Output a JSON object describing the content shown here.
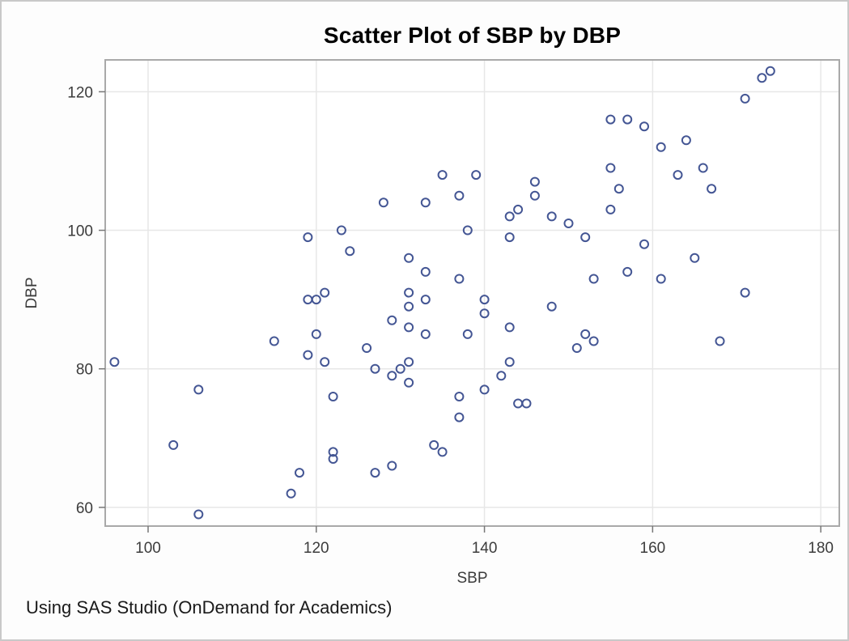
{
  "chart_data": {
    "type": "scatter",
    "title": "Scatter Plot of SBP by DBP",
    "xlabel": "SBP",
    "ylabel": "DBP",
    "x_ticks": [
      100,
      120,
      140,
      160,
      180
    ],
    "y_ticks": [
      60,
      80,
      100,
      120
    ],
    "xlim": [
      94.9,
      182.2
    ],
    "ylim": [
      57.3,
      124.6
    ],
    "grid": true,
    "legend": "none",
    "marker": "open-circle",
    "points": [
      [
        96,
        81
      ],
      [
        103,
        69
      ],
      [
        106,
        77
      ],
      [
        106,
        59
      ],
      [
        115,
        84
      ],
      [
        117,
        62
      ],
      [
        118,
        65
      ],
      [
        119,
        99
      ],
      [
        119,
        90
      ],
      [
        119,
        82
      ],
      [
        120,
        90
      ],
      [
        120,
        85
      ],
      [
        121,
        91
      ],
      [
        121,
        81
      ],
      [
        122,
        76
      ],
      [
        122,
        68
      ],
      [
        122,
        67
      ],
      [
        123,
        100
      ],
      [
        124,
        97
      ],
      [
        126,
        83
      ],
      [
        127,
        80
      ],
      [
        127,
        65
      ],
      [
        128,
        104
      ],
      [
        129,
        87
      ],
      [
        129,
        79
      ],
      [
        129,
        66
      ],
      [
        130,
        80
      ],
      [
        131,
        96
      ],
      [
        131,
        91
      ],
      [
        131,
        89
      ],
      [
        131,
        86
      ],
      [
        131,
        81
      ],
      [
        131,
        78
      ],
      [
        133,
        104
      ],
      [
        133,
        94
      ],
      [
        133,
        90
      ],
      [
        133,
        85
      ],
      [
        134,
        69
      ],
      [
        135,
        108
      ],
      [
        135,
        68
      ],
      [
        137,
        105
      ],
      [
        137,
        93
      ],
      [
        137,
        76
      ],
      [
        137,
        73
      ],
      [
        138,
        100
      ],
      [
        138,
        85
      ],
      [
        139,
        108
      ],
      [
        140,
        90
      ],
      [
        140,
        88
      ],
      [
        140,
        77
      ],
      [
        142,
        79
      ],
      [
        143,
        102
      ],
      [
        143,
        99
      ],
      [
        143,
        86
      ],
      [
        143,
        81
      ],
      [
        144,
        103
      ],
      [
        144,
        75
      ],
      [
        145,
        75
      ],
      [
        146,
        107
      ],
      [
        146,
        105
      ],
      [
        148,
        102
      ],
      [
        148,
        89
      ],
      [
        150,
        101
      ],
      [
        151,
        83
      ],
      [
        152,
        99
      ],
      [
        152,
        85
      ],
      [
        153,
        93
      ],
      [
        153,
        84
      ],
      [
        155,
        116
      ],
      [
        155,
        109
      ],
      [
        155,
        103
      ],
      [
        156,
        106
      ],
      [
        157,
        116
      ],
      [
        157,
        94
      ],
      [
        159,
        115
      ],
      [
        159,
        98
      ],
      [
        161,
        112
      ],
      [
        161,
        93
      ],
      [
        163,
        108
      ],
      [
        164,
        113
      ],
      [
        165,
        96
      ],
      [
        166,
        109
      ],
      [
        167,
        106
      ],
      [
        168,
        84
      ],
      [
        171,
        119
      ],
      [
        171,
        91
      ],
      [
        173,
        122
      ],
      [
        174,
        123
      ]
    ]
  },
  "footer": {
    "text": "Using SAS Studio (OnDemand for Academics)"
  },
  "colors": {
    "marker": "#445694",
    "grid": "#e7e7e7",
    "frame": "#a9a9a9",
    "tick": "#777777",
    "tick_label": "#3c3c3c",
    "title": "#000000",
    "axis_label": "#3c3c3c",
    "footer": "#1a1a1a",
    "background": "#fdfdfd",
    "plot_background": "#ffffff",
    "border": "#c9c9c9"
  }
}
